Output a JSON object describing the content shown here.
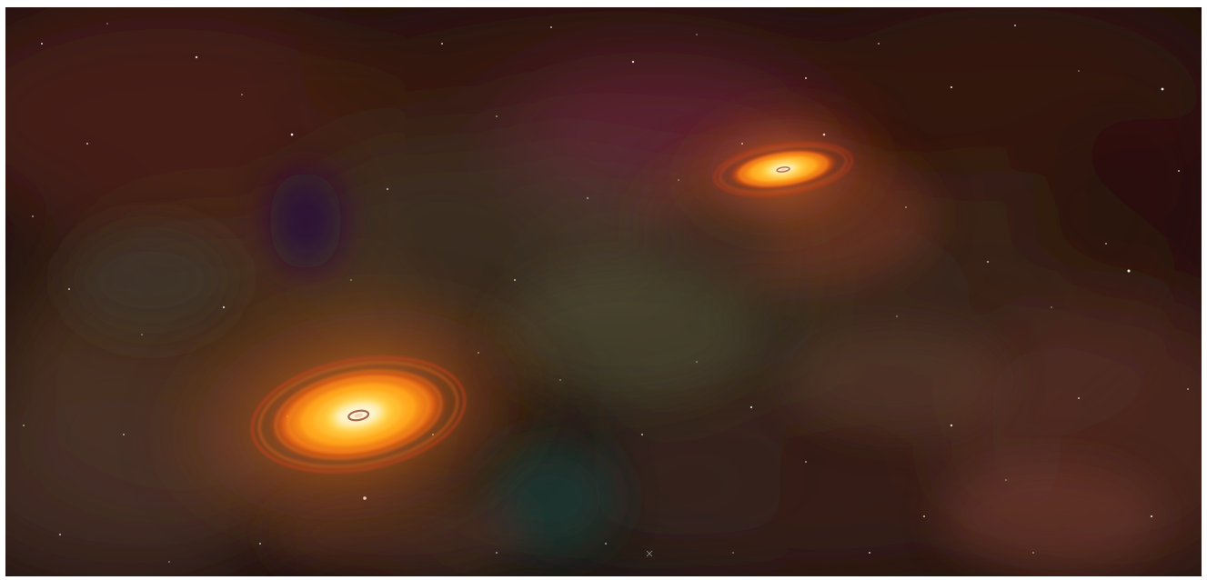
{
  "scene": {
    "subject": "space-illustration",
    "objects": [
      {
        "name": "accretion-disk-large",
        "icon": "glowing-disk"
      },
      {
        "name": "accretion-disk-small",
        "icon": "glowing-disk"
      }
    ]
  },
  "colors": {
    "background": "#1a0d0c",
    "nebula_red": "#5a2418",
    "nebula_brown": "#4a3020",
    "nebula_olive": "#5b5a3a",
    "nebula_magenta": "#7a2a4a",
    "nebula_violet": "#2a0f3a",
    "nebula_teal": "#1d3a38",
    "disk_core": "#fff6c8",
    "disk_mid": "#ffb020",
    "disk_edge": "#e0401a",
    "star": "#ffffff",
    "border": "#ffffff"
  }
}
